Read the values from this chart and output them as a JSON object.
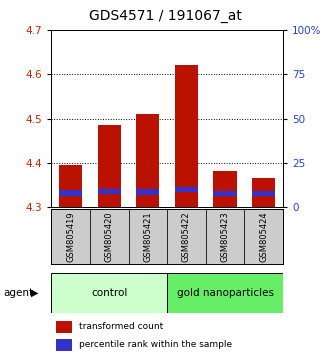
{
  "title": "GDS4571 / 191067_at",
  "samples": [
    "GSM805419",
    "GSM805420",
    "GSM805421",
    "GSM805422",
    "GSM805423",
    "GSM805424"
  ],
  "red_bar_bottom": 4.3,
  "red_bar_tops": [
    4.395,
    4.485,
    4.51,
    4.62,
    4.382,
    4.365
  ],
  "blue_bar_bottoms": [
    4.325,
    4.33,
    4.328,
    4.333,
    4.326,
    4.326
  ],
  "blue_bar_tops": [
    4.338,
    4.342,
    4.34,
    4.346,
    4.337,
    4.337
  ],
  "ylim_left": [
    4.3,
    4.7
  ],
  "ylim_right": [
    0,
    100
  ],
  "yticks_left": [
    4.3,
    4.4,
    4.5,
    4.6,
    4.7
  ],
  "yticks_right": [
    0,
    25,
    50,
    75,
    100
  ],
  "ytick_right_labels": [
    "0",
    "25",
    "50",
    "75",
    "100%"
  ],
  "red_color": "#bb1100",
  "blue_color": "#3333cc",
  "bar_width": 0.6,
  "agent_label": "agent",
  "legend_red": "transformed count",
  "legend_blue": "percentile rank within the sample",
  "title_fontsize": 10,
  "tick_fontsize": 7.5,
  "axis_label_color_left": "#cc2200",
  "axis_label_color_right": "#2244cc",
  "sample_label_fontsize": 6,
  "group_label_fontsize": 7.5,
  "legend_fontsize": 6.5,
  "gray_box_color": "#cccccc",
  "control_color": "#ccffcc",
  "gold_color": "#66ee66"
}
